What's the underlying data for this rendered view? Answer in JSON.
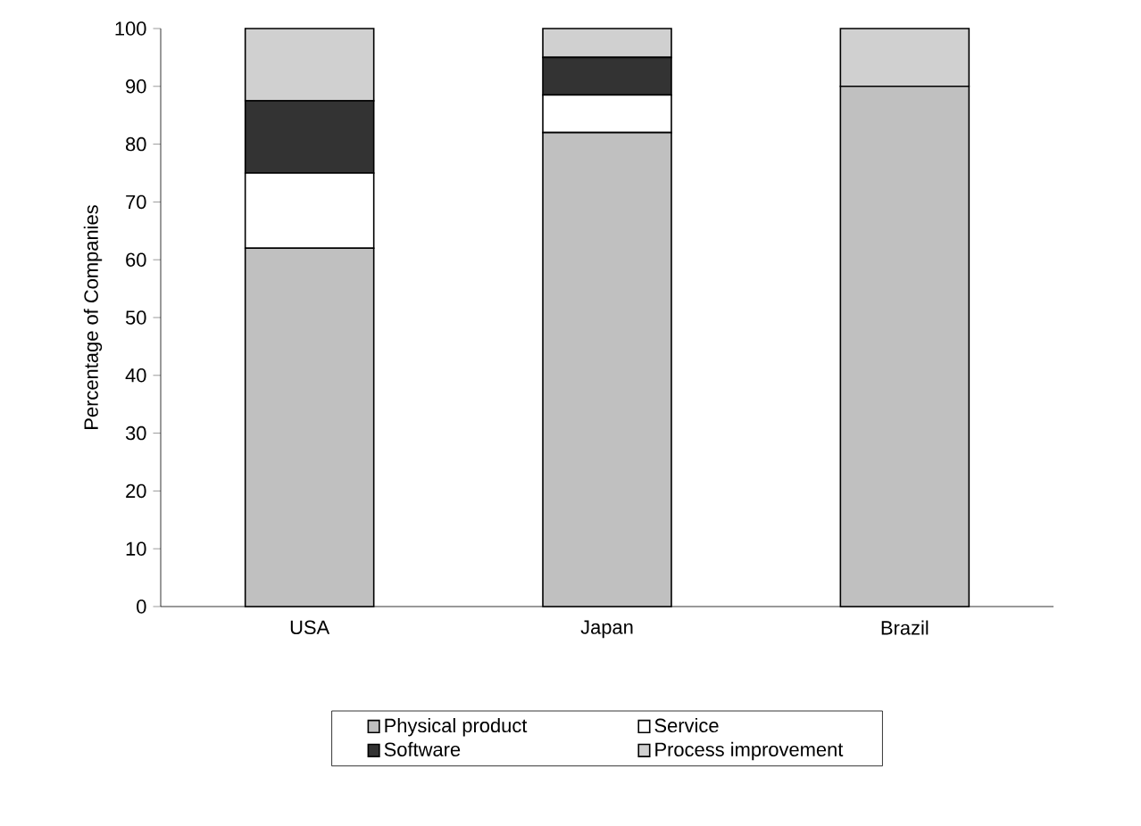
{
  "chart_data": {
    "type": "bar",
    "stacked": true,
    "ylabel": "Percentage of Companies",
    "categories": [
      "USA",
      "Japan",
      "Brazil"
    ],
    "series": [
      {
        "name": "Physical product",
        "color": "#c0c0c0",
        "values": [
          62,
          82,
          90
        ]
      },
      {
        "name": "Service",
        "color": "#ffffff",
        "values": [
          13,
          6.5,
          0
        ]
      },
      {
        "name": "Software",
        "color": "#333333",
        "values": [
          12.5,
          6.5,
          0
        ]
      },
      {
        "name": "Process improvement",
        "color": "#d0d0d0",
        "values": [
          12.5,
          5,
          10
        ]
      }
    ],
    "ylim": [
      0,
      100
    ],
    "yticks": [
      0,
      10,
      20,
      30,
      40,
      50,
      60,
      70,
      80,
      90,
      100
    ],
    "legend": "bottom",
    "grid": false
  }
}
